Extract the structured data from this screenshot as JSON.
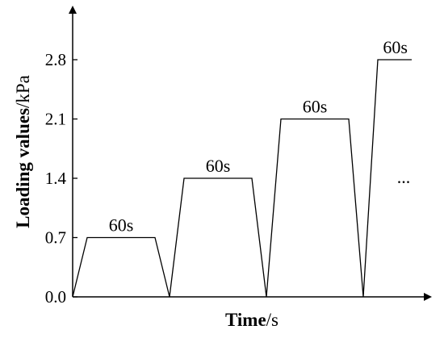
{
  "chart_data": {
    "type": "line",
    "xlabel_bold": "Time",
    "xlabel_unit": "/s",
    "ylabel_bold": "Loading values",
    "ylabel_unit": "/kPa",
    "ylim": [
      0,
      3.2
    ],
    "yticks": [
      "0.0",
      "0.7",
      "1.4",
      "2.1",
      "2.8"
    ],
    "ytick_values": [
      0,
      0.7,
      1.4,
      2.1,
      2.8
    ],
    "series": [
      {
        "x": [
          0,
          15,
          85,
          100,
          115,
          185,
          200,
          215,
          285,
          300,
          315,
          350
        ],
        "y": [
          0,
          0.7,
          0.7,
          0,
          1.4,
          1.4,
          0,
          2.1,
          2.1,
          0,
          2.8,
          2.8
        ]
      }
    ],
    "xlim": [
      0,
      380
    ],
    "annotations": [
      {
        "text": "60s",
        "x": 50,
        "y": 0.7
      },
      {
        "text": "60s",
        "x": 150,
        "y": 1.4
      },
      {
        "text": "60s",
        "x": 250,
        "y": 2.1
      },
      {
        "text": "60s",
        "x": 333,
        "y": 2.8
      }
    ],
    "continuation_text": "...",
    "grid": false
  }
}
